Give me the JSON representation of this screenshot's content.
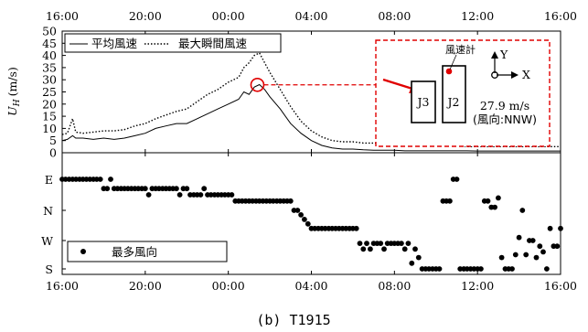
{
  "chart_data": [
    {
      "type": "line",
      "x_unit": "hour",
      "x_ticks": [
        "16:00",
        "20:00",
        "00:00",
        "04:00",
        "08:00",
        "12:00",
        "16:00"
      ],
      "ylabel_main": "U",
      "ylabel_sub": "H",
      "ylabel_unit": "(m/s)",
      "ylim": [
        0,
        50
      ],
      "y_ticks": [
        "0",
        "5",
        "10",
        "15",
        "20",
        "25",
        "30",
        "35",
        "40",
        "45",
        "50"
      ],
      "grid": false,
      "legend_position": "top-left",
      "series": [
        {
          "name": "平均風速",
          "style": "solid",
          "color": "#000000",
          "points": [
            [
              0,
              5
            ],
            [
              0.5,
              5.5
            ],
            [
              1,
              7
            ],
            [
              1.3,
              6
            ],
            [
              2,
              6
            ],
            [
              3,
              5.5
            ],
            [
              4,
              6
            ],
            [
              5,
              5.5
            ],
            [
              6,
              6
            ],
            [
              7,
              7
            ],
            [
              8,
              8
            ],
            [
              9,
              10
            ],
            [
              10,
              11
            ],
            [
              11,
              12
            ],
            [
              12,
              12
            ],
            [
              13,
              14
            ],
            [
              14,
              16
            ],
            [
              15,
              18
            ],
            [
              16,
              20
            ],
            [
              17,
              22
            ],
            [
              17.5,
              25
            ],
            [
              18,
              24
            ],
            [
              18.5,
              27
            ],
            [
              19,
              28
            ],
            [
              19.5,
              26
            ],
            [
              20,
              23
            ],
            [
              21,
              18
            ],
            [
              22,
              12
            ],
            [
              23,
              8
            ],
            [
              24,
              5
            ],
            [
              25,
              3
            ],
            [
              26,
              2
            ],
            [
              27,
              1.5
            ],
            [
              28,
              1.5
            ],
            [
              29,
              1.2
            ],
            [
              30,
              1
            ],
            [
              31,
              1
            ],
            [
              32,
              1
            ],
            [
              33,
              0.8
            ],
            [
              34,
              0.8
            ],
            [
              35,
              0.8
            ],
            [
              36,
              0.8
            ],
            [
              37,
              0.8
            ],
            [
              38,
              0.8
            ],
            [
              39,
              0.8
            ],
            [
              40,
              0.7
            ],
            [
              41,
              0.7
            ],
            [
              42,
              0.7
            ],
            [
              43,
              0.7
            ],
            [
              44,
              0.7
            ],
            [
              45,
              0.7
            ],
            [
              46,
              0.7
            ],
            [
              47,
              0.7
            ],
            [
              48,
              0.7
            ]
          ]
        },
        {
          "name": "最大瞬間風速",
          "style": "dotted",
          "color": "#000000",
          "points": [
            [
              0,
              7.5
            ],
            [
              0.5,
              8
            ],
            [
              1,
              14
            ],
            [
              1.3,
              8.5
            ],
            [
              2,
              8
            ],
            [
              3,
              8.5
            ],
            [
              4,
              9
            ],
            [
              5,
              9
            ],
            [
              6,
              9.5
            ],
            [
              7,
              11
            ],
            [
              8,
              12
            ],
            [
              9,
              14
            ],
            [
              10,
              15.5
            ],
            [
              11,
              17
            ],
            [
              12,
              18
            ],
            [
              13,
              21
            ],
            [
              14,
              24
            ],
            [
              15,
              26
            ],
            [
              16,
              29
            ],
            [
              17,
              31
            ],
            [
              17.5,
              35
            ],
            [
              18,
              37
            ],
            [
              18.5,
              40
            ],
            [
              19,
              41
            ],
            [
              19.5,
              37
            ],
            [
              20,
              33
            ],
            [
              21,
              26
            ],
            [
              22,
              19
            ],
            [
              23,
              13
            ],
            [
              24,
              9
            ],
            [
              25,
              6.5
            ],
            [
              26,
              5
            ],
            [
              27,
              4.5
            ],
            [
              28,
              4.5
            ],
            [
              29,
              4
            ],
            [
              30,
              4
            ],
            [
              31,
              4
            ],
            [
              32,
              3.5
            ],
            [
              33,
              3
            ],
            [
              34,
              3
            ],
            [
              35,
              3
            ],
            [
              36,
              3
            ],
            [
              37,
              3
            ],
            [
              38,
              3
            ],
            [
              39,
              2.5
            ],
            [
              40,
              2.5
            ],
            [
              41,
              2.5
            ],
            [
              42,
              2.5
            ],
            [
              43,
              2.5
            ],
            [
              44,
              2.5
            ],
            [
              45,
              2.5
            ],
            [
              46,
              2.5
            ],
            [
              47,
              2.5
            ],
            [
              48,
              2.5
            ]
          ]
        }
      ],
      "highlight": {
        "x": 18.8,
        "y": 27.9,
        "value_text": "27.9 m/s",
        "direction_text": "(風向:NNW)"
      },
      "inset": {
        "anemometer_label": "風速計",
        "building_a": "J3",
        "building_b": "J2",
        "axis_x": "X",
        "axis_y": "Y"
      }
    },
    {
      "type": "scatter",
      "x_ticks": [
        "16:00",
        "20:00",
        "00:00",
        "04:00",
        "08:00",
        "12:00",
        "16:00"
      ],
      "y_categories": [
        "E",
        "N",
        "W",
        "S"
      ],
      "legend_position": "bottom-left",
      "series": [
        {
          "name": "最多風向",
          "marker": "dot",
          "color": "#000000",
          "points": [
            [
              0,
              0.0
            ],
            [
              0.33,
              0.0
            ],
            [
              0.67,
              0.0
            ],
            [
              1,
              0.0
            ],
            [
              1.33,
              0.0
            ],
            [
              1.67,
              0.0
            ],
            [
              2,
              0.0
            ],
            [
              2.33,
              0.0
            ],
            [
              2.67,
              0.0
            ],
            [
              3,
              0.0
            ],
            [
              3.33,
              0.0
            ],
            [
              3.67,
              0.0
            ],
            [
              4,
              0.3
            ],
            [
              4.33,
              0.3
            ],
            [
              4.67,
              0.0
            ],
            [
              5,
              0.3
            ],
            [
              5.33,
              0.3
            ],
            [
              5.67,
              0.3
            ],
            [
              6,
              0.3
            ],
            [
              6.33,
              0.3
            ],
            [
              6.67,
              0.3
            ],
            [
              7,
              0.3
            ],
            [
              7.33,
              0.3
            ],
            [
              7.67,
              0.3
            ],
            [
              8,
              0.3
            ],
            [
              8.33,
              0.5
            ],
            [
              8.67,
              0.3
            ],
            [
              9,
              0.3
            ],
            [
              9.33,
              0.3
            ],
            [
              9.67,
              0.3
            ],
            [
              10,
              0.3
            ],
            [
              10.33,
              0.3
            ],
            [
              10.67,
              0.3
            ],
            [
              11,
              0.3
            ],
            [
              11.33,
              0.5
            ],
            [
              11.67,
              0.3
            ],
            [
              12,
              0.3
            ],
            [
              12.33,
              0.5
            ],
            [
              12.67,
              0.5
            ],
            [
              13,
              0.5
            ],
            [
              13.33,
              0.5
            ],
            [
              13.67,
              0.3
            ],
            [
              14,
              0.5
            ],
            [
              14.33,
              0.5
            ],
            [
              14.67,
              0.5
            ],
            [
              15,
              0.5
            ],
            [
              15.33,
              0.5
            ],
            [
              15.67,
              0.5
            ],
            [
              16,
              0.5
            ],
            [
              16.33,
              0.5
            ],
            [
              16.67,
              0.7
            ],
            [
              17,
              0.7
            ],
            [
              17.33,
              0.7
            ],
            [
              17.67,
              0.7
            ],
            [
              18,
              0.7
            ],
            [
              18.33,
              0.7
            ],
            [
              18.67,
              0.7
            ],
            [
              19,
              0.7
            ],
            [
              19.33,
              0.7
            ],
            [
              19.67,
              0.7
            ],
            [
              20,
              0.7
            ],
            [
              20.33,
              0.7
            ],
            [
              20.67,
              0.7
            ],
            [
              21,
              0.7
            ],
            [
              21.33,
              0.7
            ],
            [
              21.67,
              0.7
            ],
            [
              22,
              0.7
            ],
            [
              22.33,
              1.0
            ],
            [
              22.67,
              1.0
            ],
            [
              23,
              1.15
            ],
            [
              23.33,
              1.3
            ],
            [
              23.67,
              1.45
            ],
            [
              24,
              1.6
            ],
            [
              24.33,
              1.6
            ],
            [
              24.67,
              1.6
            ],
            [
              25,
              1.6
            ],
            [
              25.33,
              1.6
            ],
            [
              25.67,
              1.6
            ],
            [
              26,
              1.6
            ],
            [
              26.33,
              1.6
            ],
            [
              26.67,
              1.6
            ],
            [
              27,
              1.6
            ],
            [
              27.33,
              1.6
            ],
            [
              27.67,
              1.6
            ],
            [
              28,
              1.6
            ],
            [
              28.33,
              1.6
            ],
            [
              28.67,
              2.1
            ],
            [
              29,
              2.3
            ],
            [
              29.33,
              2.1
            ],
            [
              29.67,
              2.3
            ],
            [
              30,
              2.1
            ],
            [
              30.33,
              2.1
            ],
            [
              30.67,
              2.1
            ],
            [
              31,
              2.3
            ],
            [
              31.33,
              2.1
            ],
            [
              31.67,
              2.1
            ],
            [
              32,
              2.1
            ],
            [
              32.33,
              2.1
            ],
            [
              32.67,
              2.1
            ],
            [
              33,
              2.3
            ],
            [
              33.33,
              2.1
            ],
            [
              33.67,
              2.8
            ],
            [
              34,
              2.3
            ],
            [
              34.33,
              2.6
            ],
            [
              34.67,
              3.0
            ],
            [
              35,
              3.0
            ],
            [
              35.33,
              3.0
            ],
            [
              35.67,
              3.0
            ],
            [
              36,
              3.0
            ],
            [
              36.33,
              3.0
            ],
            [
              36.67,
              0.7
            ],
            [
              37,
              0.7
            ],
            [
              37.33,
              0.7
            ],
            [
              37.67,
              0.0
            ],
            [
              38,
              0.0
            ],
            [
              38.33,
              3.0
            ],
            [
              38.67,
              3.0
            ],
            [
              39,
              3.0
            ],
            [
              39.33,
              3.0
            ],
            [
              39.67,
              3.0
            ],
            [
              40,
              3.0
            ],
            [
              40.33,
              3.0
            ],
            [
              40.67,
              0.7
            ],
            [
              41,
              0.7
            ],
            [
              41.33,
              0.9
            ],
            [
              41.67,
              0.9
            ],
            [
              42,
              0.6
            ],
            [
              42.33,
              2.6
            ],
            [
              42.67,
              3.0
            ],
            [
              43,
              3.0
            ],
            [
              43.33,
              3.0
            ],
            [
              43.67,
              2.5
            ],
            [
              44,
              1.9
            ],
            [
              44.33,
              1.0
            ],
            [
              44.67,
              2.5
            ],
            [
              45,
              2.0
            ],
            [
              45.33,
              2.0
            ],
            [
              45.67,
              2.6
            ],
            [
              46,
              2.2
            ],
            [
              46.33,
              2.4
            ],
            [
              46.67,
              3.0
            ],
            [
              47,
              1.6
            ],
            [
              47.33,
              2.2
            ],
            [
              47.67,
              2.2
            ],
            [
              48,
              1.6
            ]
          ]
        }
      ]
    }
  ],
  "caption": "(b)  T1915"
}
